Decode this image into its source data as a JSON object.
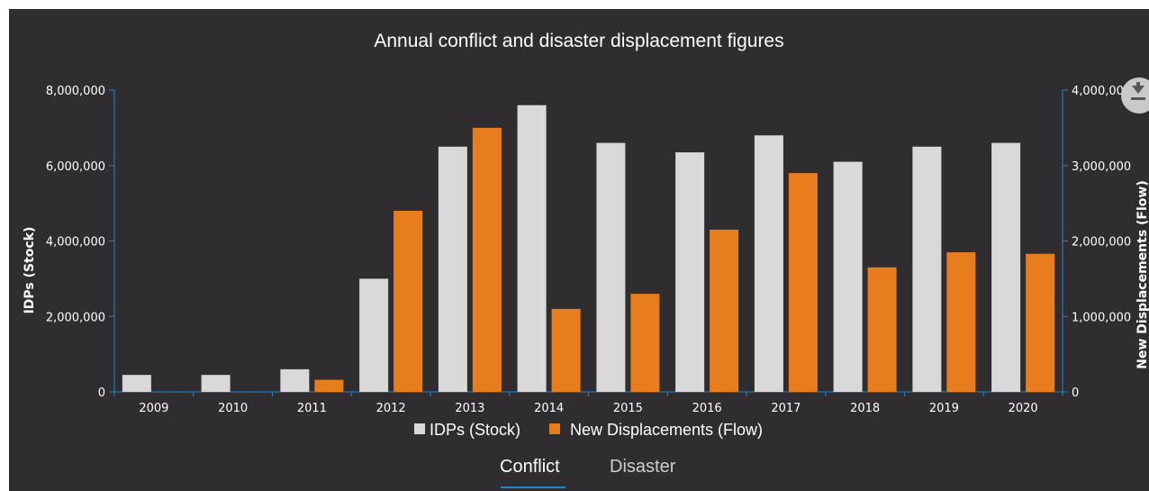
{
  "chart_data": {
    "type": "bar",
    "title": "Annual conflict and disaster displacement figures",
    "categories": [
      "2009",
      "2010",
      "2011",
      "2012",
      "2013",
      "2014",
      "2015",
      "2016",
      "2017",
      "2018",
      "2019",
      "2020"
    ],
    "series": [
      {
        "name": "IDPs (Stock)",
        "axis": "left",
        "color": "#d9d9d9",
        "values": [
          450000,
          450000,
          600000,
          3000000,
          6500000,
          7600000,
          6600000,
          6350000,
          6800000,
          6100000,
          6500000,
          6600000
        ]
      },
      {
        "name": "New Displacements (Flow)",
        "axis": "right",
        "color": "#e87d1e",
        "values": [
          0,
          0,
          160000,
          2400000,
          3500000,
          1100000,
          1300000,
          2150000,
          2900000,
          1650000,
          1850000,
          1830000
        ]
      }
    ],
    "y_left": {
      "label": "IDPs (Stock)",
      "range": [
        0,
        8000000
      ],
      "ticks": [
        "0",
        "2,000,000",
        "4,000,000",
        "6,000,000",
        "8,000,000"
      ]
    },
    "y_right": {
      "label": "New Displacements (Flow)",
      "range": [
        0,
        4000000
      ],
      "ticks": [
        "0",
        "1,000,000",
        "2,000,000",
        "3,000,000",
        "4,000,000"
      ]
    },
    "legend_position": "bottom",
    "grid": false
  },
  "tabs": [
    {
      "label": "Conflict",
      "active": true
    },
    {
      "label": "Disaster",
      "active": false
    }
  ],
  "download_icon": "download-icon",
  "colors": {
    "background": "#302d30",
    "axis": "#1a86d4",
    "stock": "#d9d9d9",
    "flow": "#e87d1e"
  }
}
